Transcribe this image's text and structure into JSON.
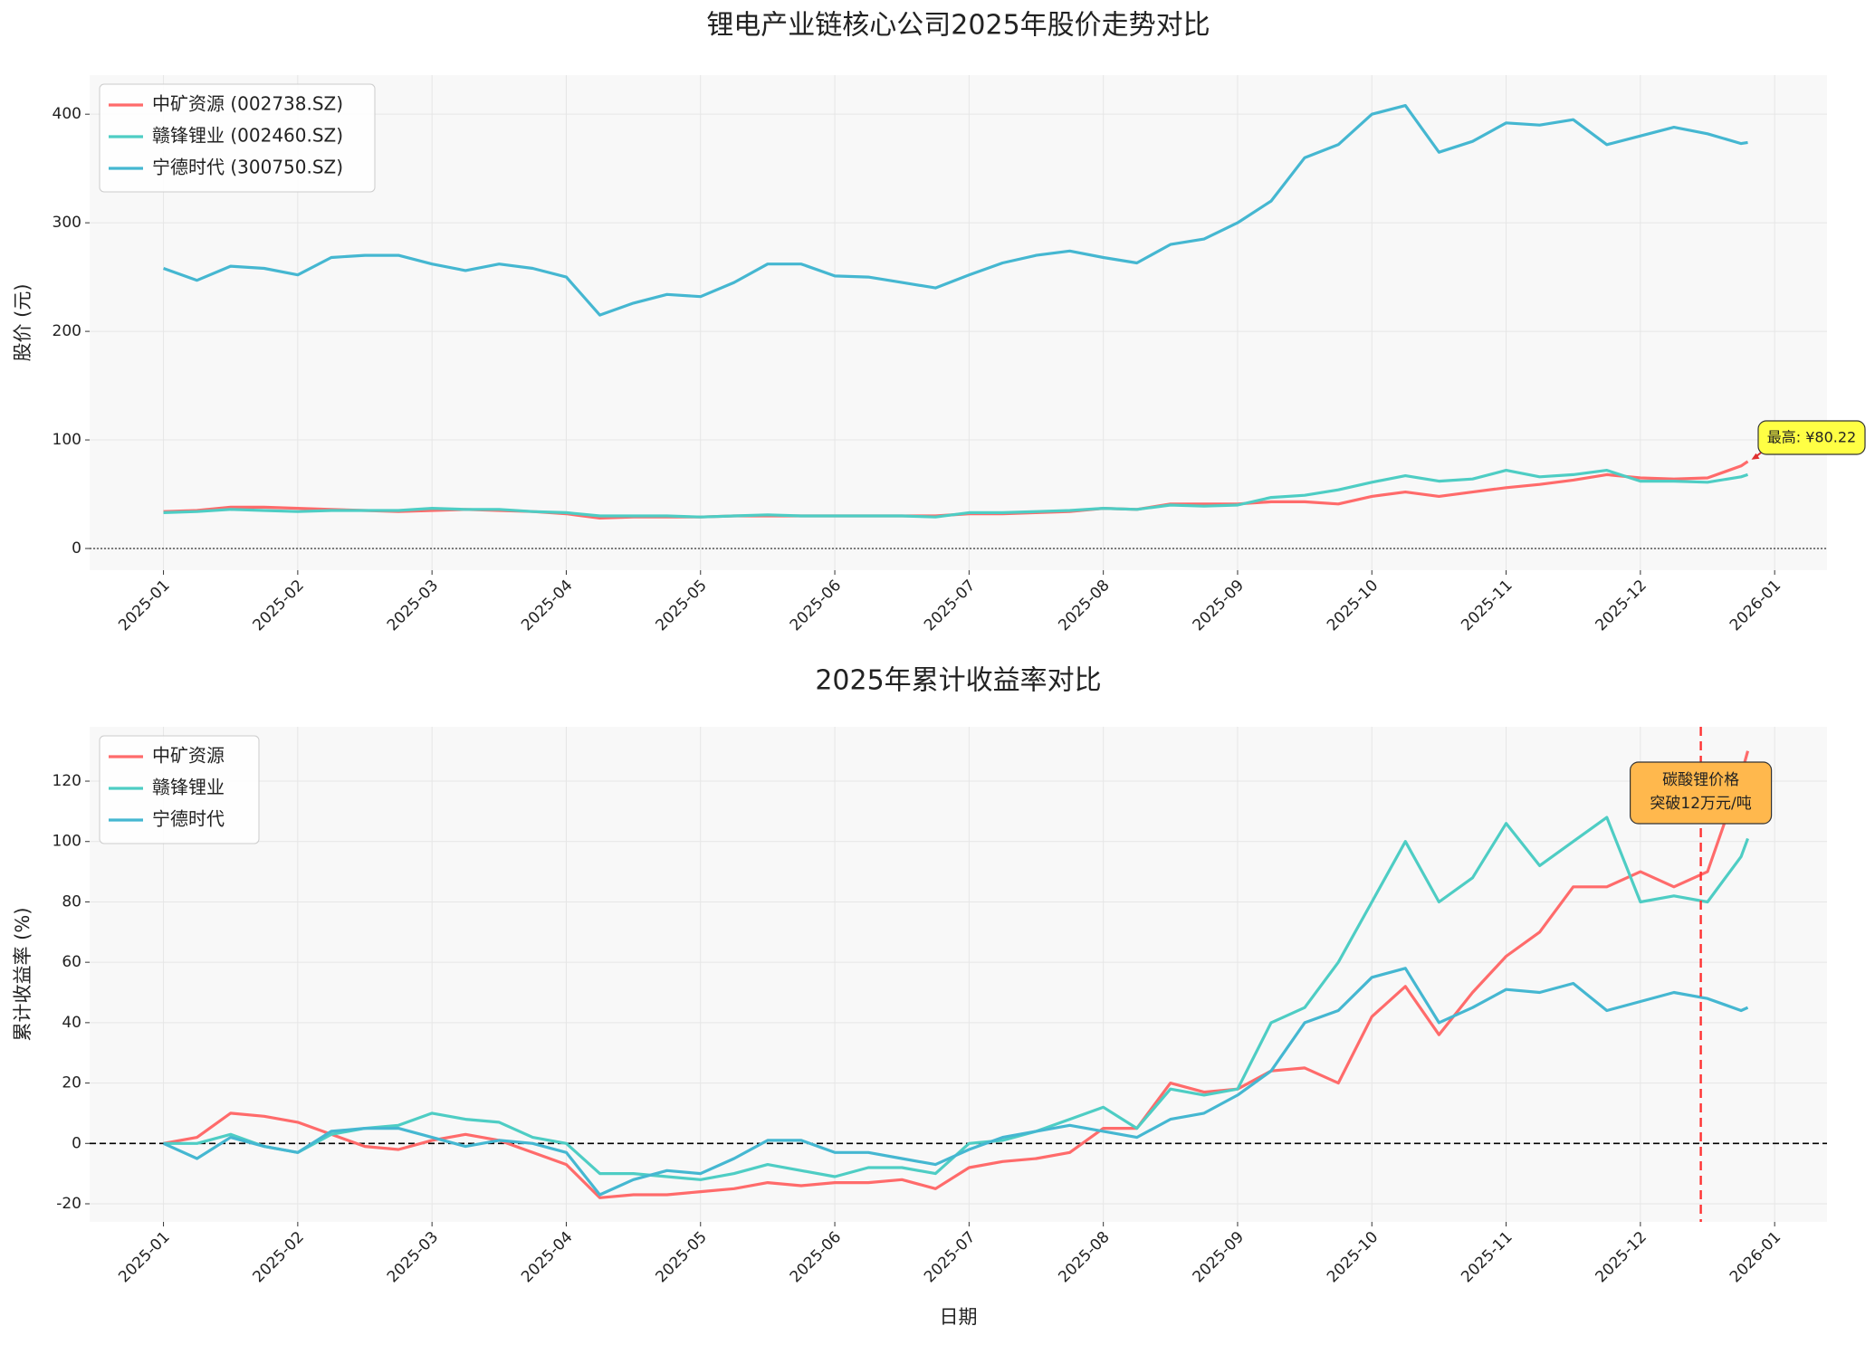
{
  "chart_data": [
    {
      "type": "line",
      "title": "锂电产业链核心公司2025年股价走势对比",
      "ylabel": "股价 (元)",
      "x": [
        0,
        0.25,
        0.5,
        0.75,
        1,
        1.25,
        1.5,
        1.75,
        2,
        2.25,
        2.5,
        2.75,
        3,
        3.25,
        3.5,
        3.75,
        4,
        4.25,
        4.5,
        4.75,
        5,
        5.25,
        5.5,
        5.75,
        6,
        6.25,
        6.5,
        6.75,
        7,
        7.25,
        7.5,
        7.75,
        8,
        8.25,
        8.5,
        8.75,
        9,
        9.25,
        9.5,
        9.75,
        10,
        10.25,
        10.5,
        10.75,
        11,
        11.25,
        11.5,
        11.75,
        11.8
      ],
      "series": [
        {
          "name": "中矿资源 (002738.SZ)",
          "color": "#FF6B6B",
          "values": [
            34,
            35,
            38,
            38,
            37,
            36,
            35,
            34,
            35,
            36,
            35,
            34,
            32,
            28,
            29,
            29,
            29,
            30,
            30,
            30,
            30,
            30,
            30,
            30,
            32,
            32,
            33,
            34,
            37,
            36,
            41,
            41,
            41,
            43,
            43,
            41,
            48,
            52,
            48,
            52,
            56,
            59,
            63,
            68,
            65,
            64,
            65,
            76,
            80.22
          ]
        },
        {
          "name": "赣锋锂业 (002460.SZ)",
          "color": "#4ECDC4",
          "values": [
            33,
            34,
            36,
            35,
            34,
            35,
            35,
            35,
            37,
            36,
            36,
            34,
            33,
            30,
            30,
            30,
            29,
            30,
            31,
            30,
            30,
            30,
            30,
            29,
            33,
            33,
            34,
            35,
            37,
            36,
            40,
            39,
            40,
            47,
            49,
            54,
            61,
            67,
            62,
            64,
            72,
            66,
            68,
            72,
            62,
            62,
            61,
            66,
            68
          ]
        },
        {
          "name": "宁德时代 (300750.SZ)",
          "color": "#45B7D1",
          "values": [
            258,
            247,
            260,
            258,
            252,
            268,
            270,
            270,
            262,
            256,
            262,
            258,
            250,
            215,
            226,
            234,
            232,
            245,
            262,
            262,
            251,
            250,
            245,
            240,
            252,
            263,
            270,
            274,
            268,
            263,
            280,
            285,
            300,
            320,
            360,
            372,
            400,
            408,
            365,
            375,
            392,
            390,
            395,
            372,
            380,
            388,
            382,
            373,
            374
          ]
        }
      ],
      "xlim": [
        -0.55,
        12.39
      ],
      "xticks": [
        {
          "value": 0,
          "label": "2025-01"
        },
        {
          "value": 1,
          "label": "2025-02"
        },
        {
          "value": 2,
          "label": "2025-03"
        },
        {
          "value": 3,
          "label": "2025-04"
        },
        {
          "value": 4,
          "label": "2025-05"
        },
        {
          "value": 5,
          "label": "2025-06"
        },
        {
          "value": 6,
          "label": "2025-07"
        },
        {
          "value": 7,
          "label": "2025-08"
        },
        {
          "value": 8,
          "label": "2025-09"
        },
        {
          "value": 9,
          "label": "2025-10"
        },
        {
          "value": 10,
          "label": "2025-11"
        },
        {
          "value": 11,
          "label": "2025-12"
        },
        {
          "value": 12,
          "label": "2026-01"
        }
      ],
      "ylim": [
        -20,
        436
      ],
      "yticks": [
        0,
        100,
        200,
        300,
        400
      ],
      "grid": true,
      "legend": "upper-left",
      "zero_line": "dotted",
      "annotation": {
        "text": "最高: ¥80.22",
        "color": "#FFFF44"
      }
    },
    {
      "type": "line",
      "title": "2025年累计收益率对比",
      "ylabel": "累计收益率 (%)",
      "xlabel": "日期",
      "x": [
        0,
        0.25,
        0.5,
        0.75,
        1,
        1.25,
        1.5,
        1.75,
        2,
        2.25,
        2.5,
        2.75,
        3,
        3.25,
        3.5,
        3.75,
        4,
        4.25,
        4.5,
        4.75,
        5,
        5.25,
        5.5,
        5.75,
        6,
        6.25,
        6.5,
        6.75,
        7,
        7.25,
        7.5,
        7.75,
        8,
        8.25,
        8.5,
        8.75,
        9,
        9.25,
        9.5,
        9.75,
        10,
        10.25,
        10.5,
        10.75,
        11,
        11.25,
        11.5,
        11.75,
        11.8
      ],
      "series": [
        {
          "name": "中矿资源",
          "color": "#FF6B6B",
          "values": [
            0,
            2,
            10,
            9,
            7,
            3,
            -1,
            -2,
            1,
            3,
            1,
            -3,
            -7,
            -18,
            -17,
            -17,
            -16,
            -15,
            -13,
            -14,
            -13,
            -13,
            -12,
            -15,
            -8,
            -6,
            -5,
            -3,
            5,
            5,
            20,
            17,
            18,
            24,
            25,
            20,
            42,
            52,
            36,
            50,
            62,
            70,
            85,
            85,
            90,
            85,
            90,
            122,
            130
          ]
        },
        {
          "name": "赣锋锂业",
          "color": "#4ECDC4",
          "values": [
            0,
            0,
            3,
            -1,
            -3,
            3,
            5,
            6,
            10,
            8,
            7,
            2,
            0,
            -10,
            -10,
            -11,
            -12,
            -10,
            -7,
            -9,
            -11,
            -8,
            -8,
            -10,
            0,
            1,
            4,
            8,
            12,
            5,
            18,
            16,
            18,
            40,
            45,
            60,
            80,
            100,
            80,
            88,
            106,
            92,
            100,
            108,
            80,
            82,
            80,
            95,
            101
          ]
        },
        {
          "name": "宁德时代",
          "color": "#45B7D1",
          "values": [
            0,
            -5,
            2,
            -1,
            -3,
            4,
            5,
            5,
            2,
            -1,
            1,
            0,
            -3,
            -17,
            -12,
            -9,
            -10,
            -5,
            1,
            1,
            -3,
            -3,
            -5,
            -7,
            -2,
            2,
            4,
            6,
            4,
            2,
            8,
            10,
            16,
            24,
            40,
            44,
            55,
            58,
            40,
            45,
            51,
            50,
            53,
            44,
            47,
            50,
            48,
            44,
            45
          ]
        }
      ],
      "xlim": [
        -0.55,
        12.39
      ],
      "xticks": [
        {
          "value": 0,
          "label": "2025-01"
        },
        {
          "value": 1,
          "label": "2025-02"
        },
        {
          "value": 2,
          "label": "2025-03"
        },
        {
          "value": 3,
          "label": "2025-04"
        },
        {
          "value": 4,
          "label": "2025-05"
        },
        {
          "value": 5,
          "label": "2025-06"
        },
        {
          "value": 6,
          "label": "2025-07"
        },
        {
          "value": 7,
          "label": "2025-08"
        },
        {
          "value": 8,
          "label": "2025-09"
        },
        {
          "value": 9,
          "label": "2025-10"
        },
        {
          "value": 10,
          "label": "2025-11"
        },
        {
          "value": 11,
          "label": "2025-12"
        },
        {
          "value": 12,
          "label": "2026-01"
        }
      ],
      "ylim": [
        -26,
        138
      ],
      "yticks": [
        -20,
        0,
        20,
        40,
        60,
        80,
        100,
        120
      ],
      "grid": true,
      "legend": "upper-left",
      "zero_line": "dashed",
      "event": {
        "x": 11.45,
        "color": "#FF3333",
        "label_lines": [
          "碳酸锂价格",
          "突破12万元/吨"
        ],
        "label_color": "#FFB84D"
      }
    }
  ]
}
